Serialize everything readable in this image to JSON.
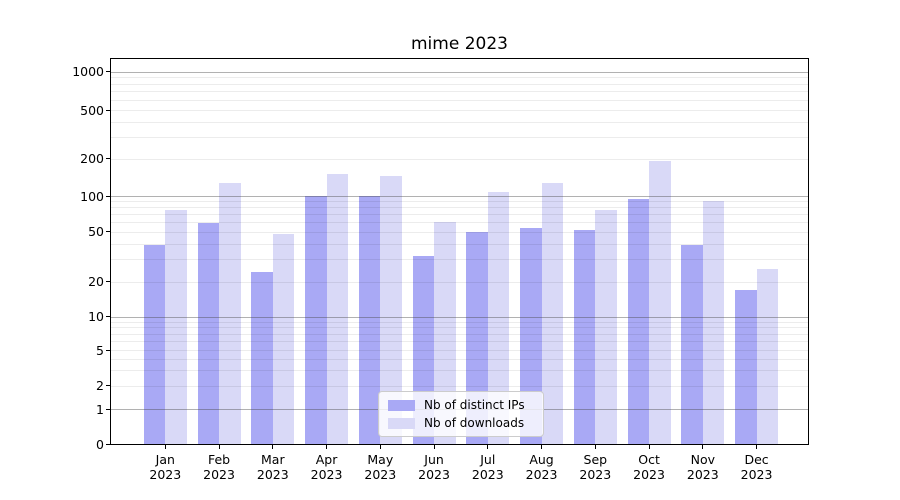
{
  "figure": {
    "title": "mime 2023"
  },
  "chart_data": {
    "type": "bar",
    "title": "mime 2023",
    "categories": [
      "Jan 2023",
      "Feb 2023",
      "Mar 2023",
      "Apr 2023",
      "May 2023",
      "Jun 2023",
      "Jul 2023",
      "Aug 2023",
      "Sep 2023",
      "Oct 2023",
      "Nov 2023",
      "Dec 2023"
    ],
    "series": [
      {
        "name": "Nb of distinct IPs",
        "color": "#a9a9f5",
        "values": [
          39,
          59,
          24,
          100,
          100,
          32,
          50,
          54,
          51,
          94,
          39,
          17
        ]
      },
      {
        "name": "Nb of downloads",
        "color": "#d9d9f7",
        "values": [
          76,
          126,
          48,
          150,
          145,
          60,
          108,
          128,
          76,
          190,
          91,
          25
        ]
      }
    ],
    "xlabel": "",
    "ylabel": "",
    "yscale": "symlog",
    "yticks": [
      0,
      1,
      2,
      5,
      10,
      20,
      50,
      100,
      200,
      500,
      1000
    ],
    "ytick_labels": [
      "0",
      "1",
      "2",
      "5",
      "10",
      "20",
      "50",
      "100",
      "200",
      "500",
      "1000"
    ],
    "ylim": [
      0,
      1300
    ],
    "grid": "both",
    "legend_position": "lower center"
  },
  "colors": {
    "bar_distinct_ips": "#a9a9f5",
    "bar_downloads": "#d9d9f7",
    "grid_major": "#b0b0b0",
    "grid_minor": "#e8e8e8",
    "spine": "#000000",
    "legend_border": "#cccccc",
    "text": "#000000"
  }
}
